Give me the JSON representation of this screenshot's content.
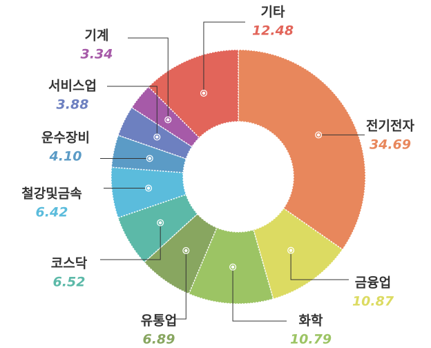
{
  "chart_data": {
    "type": "pie",
    "categories": [
      "전기전자",
      "금융업",
      "화학",
      "유통업",
      "코스닥",
      "철강및금속",
      "운수장비",
      "서비스업",
      "기계",
      "기타"
    ],
    "values": [
      34.69,
      10.87,
      10.79,
      6.89,
      6.52,
      6.42,
      4.1,
      3.88,
      3.34,
      12.48
    ],
    "value_labels": [
      "34.69",
      "10.87",
      "10.79",
      "6.89",
      "6.52",
      "6.42",
      "4.10",
      "3.88",
      "3.34",
      "12.48"
    ],
    "colors": [
      "#e8875c",
      "#dcdb62",
      "#9cc464",
      "#88a660",
      "#5cb9a8",
      "#5bbcdc",
      "#5b9bc6",
      "#6d80c0",
      "#a65aa8",
      "#e2655a"
    ]
  }
}
